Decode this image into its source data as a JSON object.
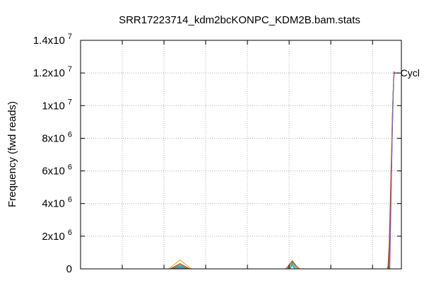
{
  "chart_data": {
    "type": "line",
    "title": "SRR17223714_kdm2bcKONPC_KDM2B.bam.stats",
    "xlabel": "",
    "ylabel": "Frequency (fwd reads)",
    "ylim": [
      0,
      14000000
    ],
    "xlim": [
      0,
      100
    ],
    "grid": true,
    "legend_placement": "right",
    "y_ticks": [
      {
        "value": 0,
        "mantissa": "0",
        "exp": ""
      },
      {
        "value": 2000000,
        "mantissa": "2x10",
        "exp": "6"
      },
      {
        "value": 4000000,
        "mantissa": "4x10",
        "exp": "6"
      },
      {
        "value": 6000000,
        "mantissa": "6x10",
        "exp": "6"
      },
      {
        "value": 8000000,
        "mantissa": "8x10",
        "exp": "6"
      },
      {
        "value": 10000000,
        "mantissa": "1x10",
        "exp": "7"
      },
      {
        "value": 12000000,
        "mantissa": "1.2x10",
        "exp": "7"
      },
      {
        "value": 14000000,
        "mantissa": "1.4x10",
        "exp": "7"
      }
    ],
    "x_grid": [
      13,
      26,
      39,
      52,
      65,
      78,
      91
    ],
    "annotation": {
      "text": "Cycl",
      "x": 97.5,
      "y": 12000000
    },
    "series": [
      {
        "color": "#e6a817",
        "values": [
          [
            27.5,
            0
          ],
          [
            31,
            550000
          ],
          [
            34.5,
            0
          ],
          [
            64,
            0
          ],
          [
            66,
            350000
          ],
          [
            68.5,
            0
          ],
          [
            95.5,
            0
          ],
          [
            96,
            300000
          ],
          [
            96.3,
            1800000
          ],
          [
            96.7,
            4000000
          ],
          [
            97,
            7500000
          ],
          [
            97.3,
            10000000
          ],
          [
            97.6,
            11500000
          ]
        ]
      },
      {
        "color": "#d62728",
        "values": [
          [
            28,
            0
          ],
          [
            31,
            320000
          ],
          [
            34,
            0
          ],
          [
            64,
            0
          ],
          [
            66,
            500000
          ],
          [
            68,
            0
          ],
          [
            95.8,
            0
          ],
          [
            96.2,
            1500000
          ],
          [
            96.5,
            3800000
          ],
          [
            96.9,
            7000000
          ],
          [
            97.2,
            9500000
          ],
          [
            97.5,
            11200000
          ],
          [
            97.7,
            12100000
          ]
        ]
      },
      {
        "color": "#2ca02c",
        "values": [
          [
            28.5,
            0
          ],
          [
            31,
            250000
          ],
          [
            33.5,
            0
          ],
          [
            64.5,
            0
          ],
          [
            66,
            420000
          ],
          [
            67.5,
            0
          ],
          [
            96,
            0
          ],
          [
            96.4,
            2000000
          ],
          [
            96.8,
            5000000
          ],
          [
            97.1,
            8500000
          ],
          [
            97.4,
            10800000
          ],
          [
            97.7,
            11900000
          ]
        ]
      },
      {
        "color": "#1f77b4",
        "values": [
          [
            29,
            0
          ],
          [
            31,
            180000
          ],
          [
            33,
            0
          ],
          [
            65,
            0
          ],
          [
            66,
            300000
          ],
          [
            67,
            0
          ],
          [
            96.2,
            0
          ],
          [
            96.6,
            3000000
          ],
          [
            97,
            6500000
          ],
          [
            97.3,
            9800000
          ],
          [
            97.6,
            11700000
          ]
        ]
      },
      {
        "color": "#17becf",
        "values": [
          [
            29.5,
            0
          ],
          [
            31,
            120000
          ],
          [
            32.5,
            0
          ],
          [
            65.3,
            0
          ],
          [
            66,
            200000
          ],
          [
            66.7,
            0
          ],
          [
            96.3,
            0
          ],
          [
            96.7,
            3500000
          ],
          [
            97.1,
            7800000
          ],
          [
            97.5,
            11000000
          ]
        ]
      },
      {
        "color": "#8c564b",
        "values": [
          [
            29.8,
            0
          ],
          [
            31,
            80000
          ],
          [
            32.2,
            0
          ],
          [
            96.1,
            0
          ],
          [
            96.5,
            2500000
          ],
          [
            96.9,
            6000000
          ],
          [
            97.3,
            9200000
          ],
          [
            97.6,
            11400000
          ]
        ]
      },
      {
        "color": "#9467bd",
        "values": [
          [
            30,
            0
          ],
          [
            31,
            60000
          ],
          [
            32,
            0
          ],
          [
            96.4,
            0
          ],
          [
            96.8,
            4200000
          ],
          [
            97.2,
            8800000
          ],
          [
            97.6,
            11900000
          ],
          [
            97.8,
            12100000
          ]
        ]
      },
      {
        "color": "#e377c2",
        "values": [
          [
            97.4,
            11500000
          ],
          [
            97.7,
            12050000
          ],
          [
            97.9,
            11800000
          ]
        ]
      }
    ]
  }
}
